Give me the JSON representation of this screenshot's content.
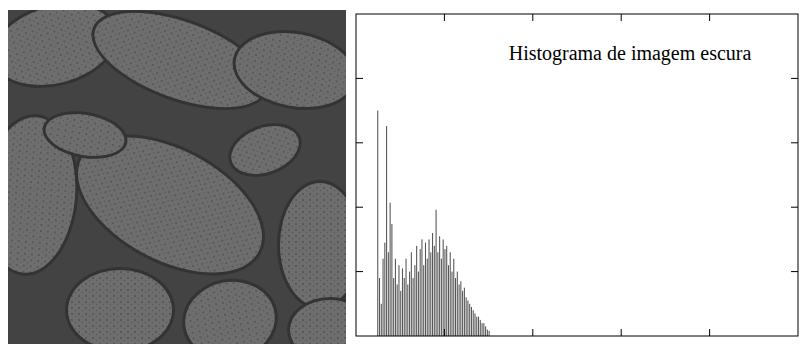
{
  "chart_data": {
    "type": "histogram",
    "title": "Histograma de imagem escura",
    "bins": [
      12,
      13,
      14,
      15,
      16,
      17,
      18,
      19,
      20,
      21,
      22,
      23,
      24,
      25,
      26,
      27,
      28,
      29,
      30,
      31,
      32,
      33,
      34,
      35,
      36,
      37,
      38,
      39,
      40,
      41,
      42,
      43,
      44,
      45,
      46,
      47,
      48,
      49,
      50,
      51,
      52,
      53,
      54,
      55,
      56,
      57,
      58,
      59,
      60,
      61,
      62,
      63,
      64,
      65,
      66,
      67,
      68,
      69,
      70,
      71,
      72,
      73,
      74,
      75,
      76
    ],
    "values": [
      3.5,
      0.9,
      0.5,
      1.2,
      1.45,
      3.26,
      1.3,
      2.07,
      1.74,
      0.9,
      1.2,
      0.8,
      1.1,
      0.7,
      1.05,
      0.9,
      1.2,
      0.8,
      1.0,
      1.3,
      0.9,
      1.1,
      1.4,
      1.0,
      1.35,
      1.5,
      1.1,
      1.45,
      1.2,
      1.5,
      1.3,
      1.6,
      1.4,
      1.96,
      1.3,
      1.55,
      1.2,
      1.5,
      1.35,
      1.4,
      1.1,
      1.3,
      1.0,
      1.2,
      0.9,
      1.0,
      0.8,
      0.85,
      0.7,
      0.75,
      0.6,
      0.55,
      0.5,
      0.45,
      0.4,
      0.35,
      0.3,
      0.3,
      0.25,
      0.2,
      0.2,
      0.15,
      0.1,
      0.08
    ],
    "color": "#555555",
    "xlim": [
      0,
      250
    ],
    "xticks": [
      50,
      100,
      150,
      200
    ],
    "ylim": [
      0,
      5
    ],
    "yticks": [
      1,
      2,
      3,
      4
    ],
    "grid": false,
    "tick_labels": false
  }
}
